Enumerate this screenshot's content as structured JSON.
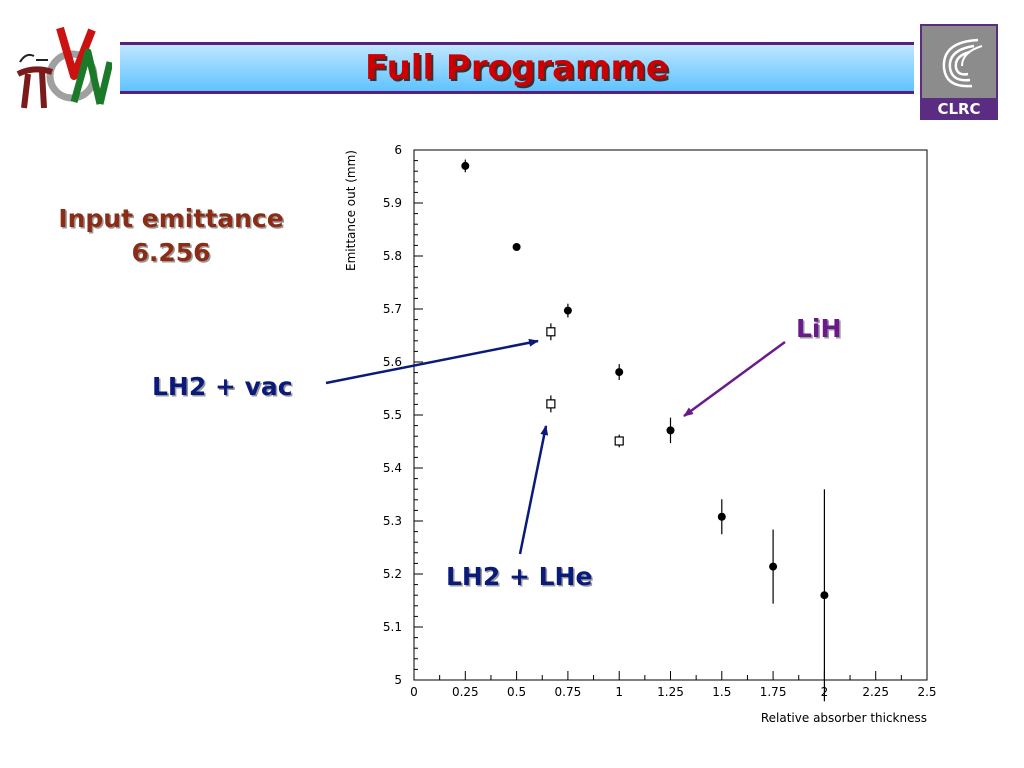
{
  "header": {
    "title": "Full Programme"
  },
  "logos": {
    "left": "fact-nu-mu-logo",
    "right_text": "CLRC"
  },
  "note": {
    "line1": "Input emittance",
    "line2": "6.256"
  },
  "annotations": {
    "lh2_vac": "LH2 + vac",
    "lh2_lhe": "LH2 + LHe",
    "lih": "LiH"
  },
  "colors": {
    "title": "#cc0000",
    "note": "#8b2c16",
    "annotation_blue": "#0a1a7a",
    "annotation_purple": "#6a1a8a",
    "title_bar_border": "#5a1f7a"
  },
  "chart_data": {
    "type": "scatter",
    "title": "",
    "xlabel": "Relative absorber thickness",
    "ylabel": "Emittance out (mm)",
    "xlim": [
      0,
      2.5
    ],
    "ylim": [
      5,
      6
    ],
    "xticks": [
      "0",
      "0.25",
      "0.5",
      "0.75",
      "1",
      "1.25",
      "1.5",
      "1.75",
      "2",
      "2.25",
      "2.5"
    ],
    "yticks": [
      "5",
      "5.1",
      "5.2",
      "5.3",
      "5.4",
      "5.5",
      "5.6",
      "5.7",
      "5.8",
      "5.9",
      "6"
    ],
    "grid": false,
    "series": [
      {
        "marker": "filled-circle",
        "points": [
          {
            "x": 0.25,
            "y": 5.97,
            "err": 0.012
          },
          {
            "x": 0.5,
            "y": 5.817,
            "err": 0.006
          },
          {
            "x": 0.75,
            "y": 5.697,
            "err": 0.013
          },
          {
            "x": 1.0,
            "y": 5.581,
            "err": 0.015
          },
          {
            "x": 1.25,
            "y": 5.471,
            "err": 0.024
          },
          {
            "x": 1.5,
            "y": 5.308,
            "err": 0.033
          },
          {
            "x": 1.75,
            "y": 5.214,
            "err": 0.07
          },
          {
            "x": 2.0,
            "y": 5.16,
            "err": 0.2
          }
        ]
      },
      {
        "marker": "open-square",
        "points": [
          {
            "x": 0.667,
            "y": 5.657,
            "err": 0.016
          },
          {
            "x": 0.667,
            "y": 5.521,
            "err": 0.016
          },
          {
            "x": 1.0,
            "y": 5.451,
            "err": 0.012
          }
        ]
      }
    ]
  }
}
